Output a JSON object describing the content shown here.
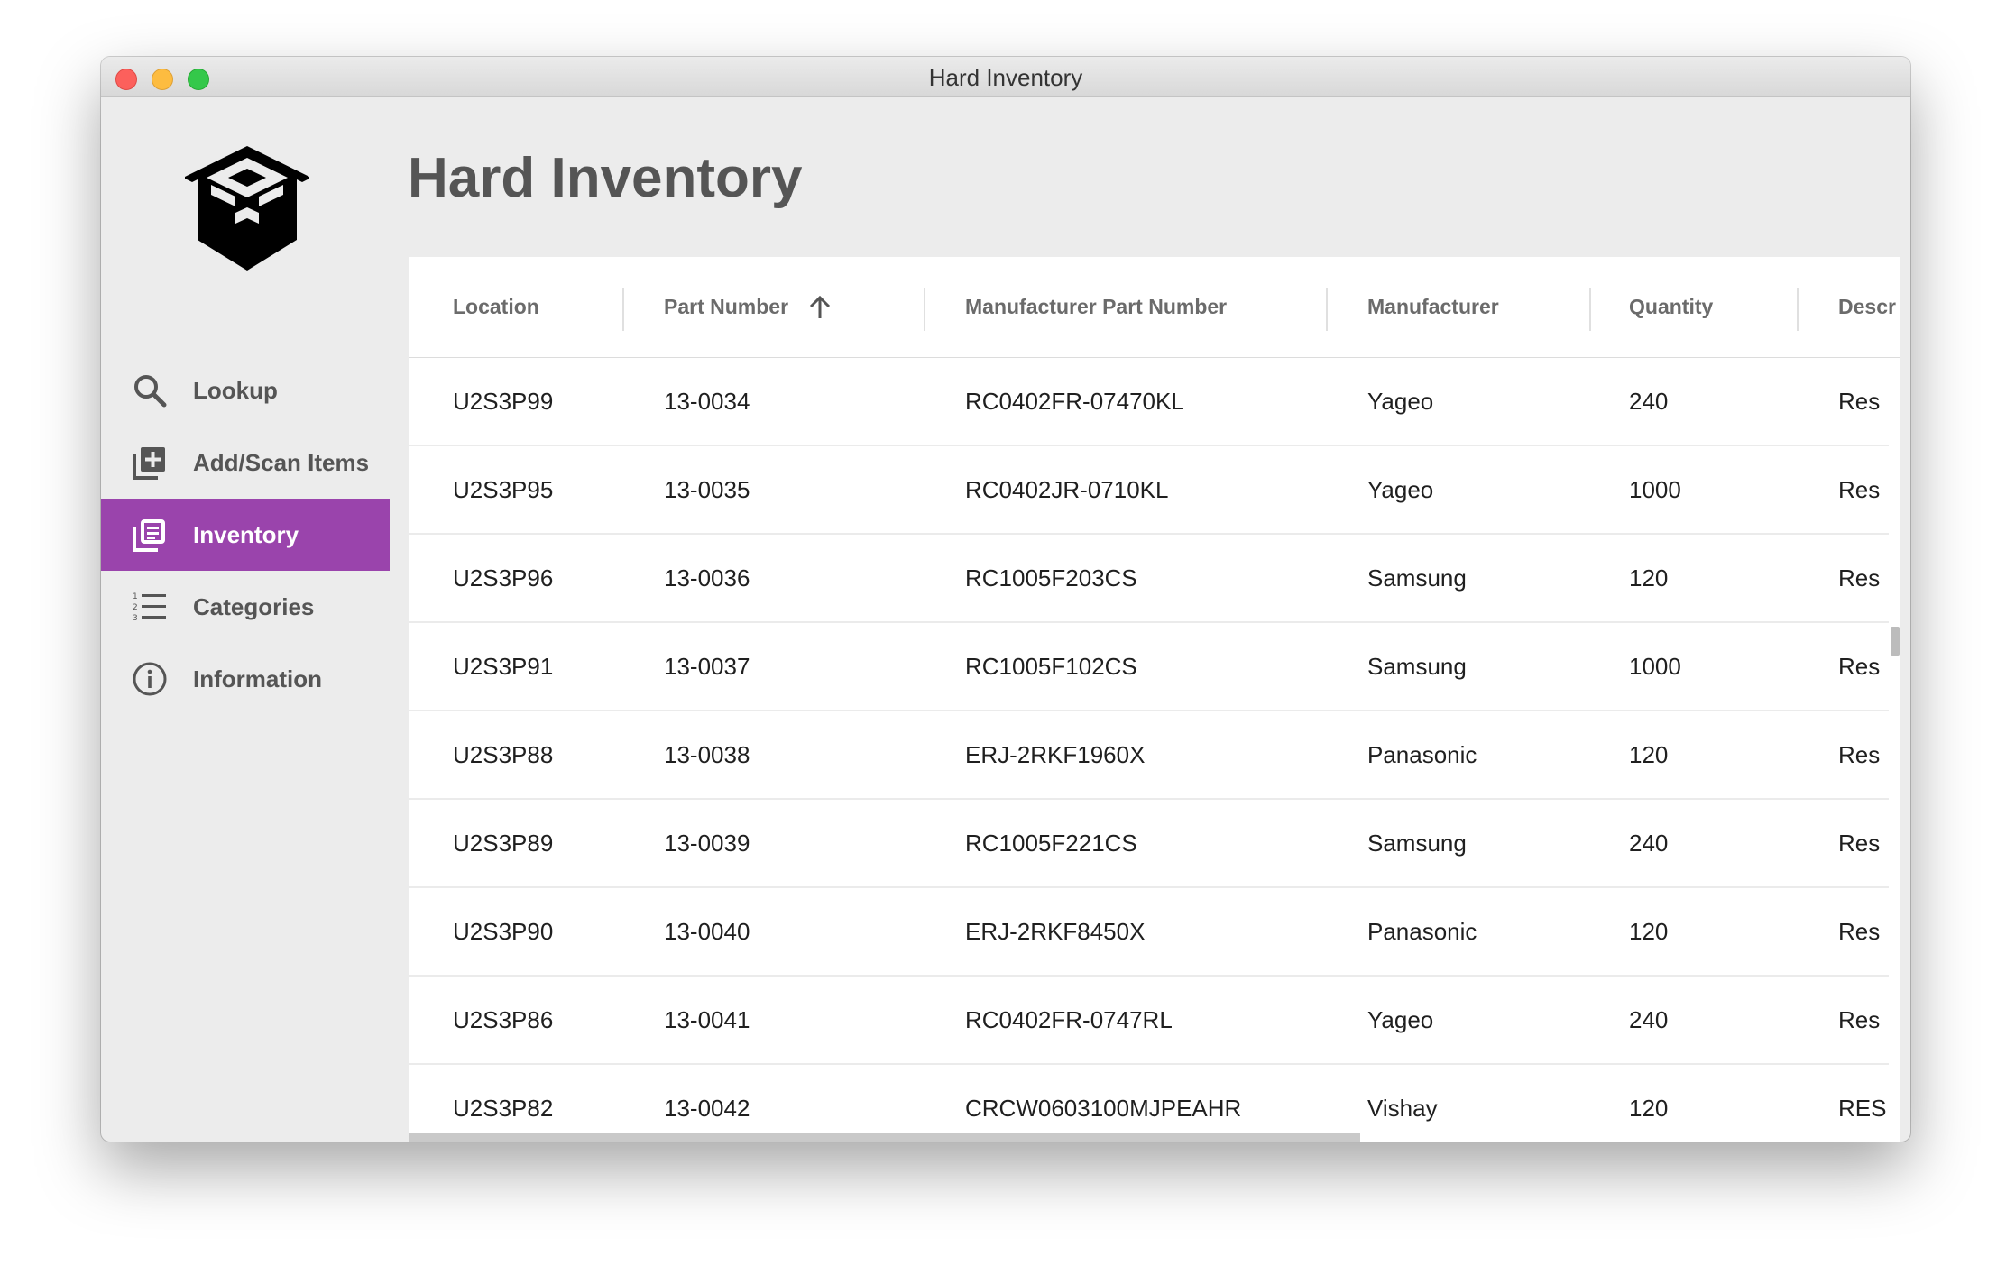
{
  "window": {
    "title": "Hard Inventory"
  },
  "app": {
    "title": "Hard Inventory",
    "logo_icon": "hexagon-box-logo-icon"
  },
  "nav": {
    "active_color": "#9a44ac",
    "items": [
      {
        "label": "Lookup",
        "icon": "search-icon"
      },
      {
        "label": "Add/Scan Items",
        "icon": "add-box-icon"
      },
      {
        "label": "Inventory",
        "icon": "inventory-list-icon",
        "active": true
      },
      {
        "label": "Categories",
        "icon": "numbered-list-icon"
      },
      {
        "label": "Information",
        "icon": "info-icon"
      }
    ]
  },
  "table": {
    "sort_column": "Part Number",
    "sort_direction": "ascending",
    "columns": [
      "Location",
      "Part Number",
      "Manufacturer Part Number",
      "Manufacturer",
      "Quantity",
      "Descr"
    ],
    "rows": [
      [
        "U2S3P99",
        "13-0034",
        "RC0402FR-07470KL",
        "Yageo",
        "240",
        "Res"
      ],
      [
        "U2S3P95",
        "13-0035",
        "RC0402JR-0710KL",
        "Yageo",
        "1000",
        "Res"
      ],
      [
        "U2S3P96",
        "13-0036",
        "RC1005F203CS",
        "Samsung",
        "120",
        "Res"
      ],
      [
        "U2S3P91",
        "13-0037",
        "RC1005F102CS",
        "Samsung",
        "1000",
        "Res"
      ],
      [
        "U2S3P88",
        "13-0038",
        "ERJ-2RKF1960X",
        "Panasonic",
        "120",
        "Res"
      ],
      [
        "U2S3P89",
        "13-0039",
        "RC1005F221CS",
        "Samsung",
        "240",
        "Res"
      ],
      [
        "U2S3P90",
        "13-0040",
        "ERJ-2RKF8450X",
        "Panasonic",
        "120",
        "Res"
      ],
      [
        "U2S3P86",
        "13-0041",
        "RC0402FR-0747RL",
        "Yageo",
        "240",
        "Res"
      ],
      [
        "U2S3P82",
        "13-0042",
        "CRCW0603100MJPEAHR",
        "Vishay",
        "120",
        "RES"
      ]
    ]
  }
}
